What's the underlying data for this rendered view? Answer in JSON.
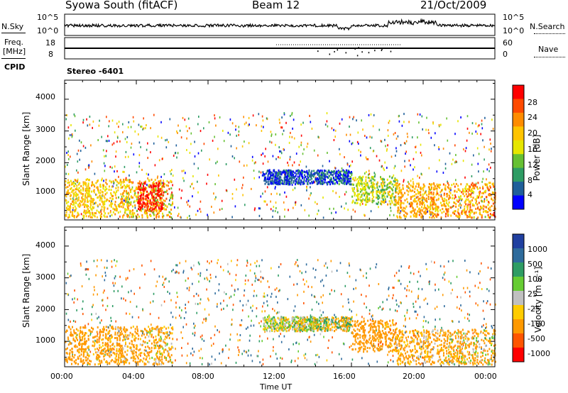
{
  "header": {
    "left": "Syowa South (fitACF)",
    "center": "Beam 12",
    "right": "21/Oct/2009"
  },
  "noise_panel": {
    "left_label": "N.Sky",
    "left_ticks": [
      "10^5",
      "10^0"
    ],
    "right_label": "N.Search",
    "right_ticks": [
      "10^5",
      "10^0"
    ]
  },
  "freq_panel": {
    "left_label_1": "Freq.",
    "left_label_2": "[MHz]",
    "left_ticks": [
      "18",
      "8"
    ],
    "right_label": "Nave",
    "right_ticks": [
      "60",
      "0"
    ],
    "cpid_label": "CPID",
    "cpid_value": "Stereo -6401"
  },
  "time_axis": {
    "label": "Time UT",
    "ticks": [
      "00:00",
      "04:00",
      "08:00",
      "12:00",
      "16:00",
      "20:00",
      "00:00"
    ]
  },
  "panels": [
    {
      "ylabel": "Slant Range [km]",
      "yticks": [
        "1000",
        "2000",
        "3000",
        "4000"
      ],
      "colorbar_label": "Power [dB]",
      "colorbar_ticks": [
        "28",
        "24",
        "20",
        "16",
        "12",
        "8",
        "4"
      ],
      "colors": [
        "#ff0000",
        "#ff4a00",
        "#ff8c00",
        "#ffc400",
        "#e6e600",
        "#66c033",
        "#2e9c64",
        "#1f5f9a",
        "#0000ff"
      ]
    },
    {
      "ylabel": "Slant Range [km]",
      "yticks": [
        "1000",
        "2000",
        "3000",
        "4000"
      ],
      "colorbar_label": "Velocity [m s⁻¹]",
      "colorbar_ticks": [
        "1000",
        "500",
        "100",
        "25",
        "-25",
        "-100",
        "-500",
        "-1000"
      ],
      "colors": [
        "#2040a0",
        "#2e6b9c",
        "#2e9c64",
        "#66cc33",
        "#c0c0c0",
        "#ffcc00",
        "#ff9900",
        "#ff5500",
        "#ff0000"
      ]
    }
  ],
  "chart_data": [
    {
      "type": "heatmap",
      "title": "Syowa South (fitACF) Beam 12 21/Oct/2009",
      "xlabel": "Time UT",
      "ylabel": "Slant Range [km]",
      "xlim": [
        "00:00",
        "24:00"
      ],
      "ylim": [
        200,
        4600
      ],
      "colorbar": "Power [dB]",
      "clim": [
        0,
        30
      ],
      "regions": [
        {
          "t_start": 0.0,
          "t_end": 6.0,
          "range_start": 300,
          "range_end": 1500,
          "value": 18
        },
        {
          "t_start": 4.0,
          "t_end": 5.5,
          "range_start": 500,
          "range_end": 1400,
          "value": 28
        },
        {
          "t_start": 11.0,
          "t_end": 16.0,
          "range_start": 1350,
          "range_end": 1800,
          "value": 4
        },
        {
          "t_start": 16.0,
          "t_end": 18.5,
          "range_start": 700,
          "range_end": 1600,
          "value": 14
        },
        {
          "t_start": 18.5,
          "t_end": 24.0,
          "range_start": 300,
          "range_end": 1400,
          "value": 20
        }
      ]
    },
    {
      "type": "heatmap",
      "title": "Syowa South (fitACF) Beam 12 21/Oct/2009",
      "xlabel": "Time UT",
      "ylabel": "Slant Range [km]",
      "xlim": [
        "00:00",
        "24:00"
      ],
      "ylim": [
        200,
        4600
      ],
      "colorbar": "Velocity [m s^-1]",
      "clim": [
        -1000,
        1000
      ],
      "regions": [
        {
          "t_start": 0.0,
          "t_end": 6.0,
          "range_start": 300,
          "range_end": 1500,
          "value": -200
        },
        {
          "t_start": 11.0,
          "t_end": 16.0,
          "range_start": 1350,
          "range_end": 1800,
          "value": 0
        },
        {
          "t_start": 16.0,
          "t_end": 18.5,
          "range_start": 700,
          "range_end": 1700,
          "value": -300
        },
        {
          "t_start": 18.5,
          "t_end": 24.0,
          "range_start": 300,
          "range_end": 1400,
          "value": -150
        }
      ]
    }
  ]
}
